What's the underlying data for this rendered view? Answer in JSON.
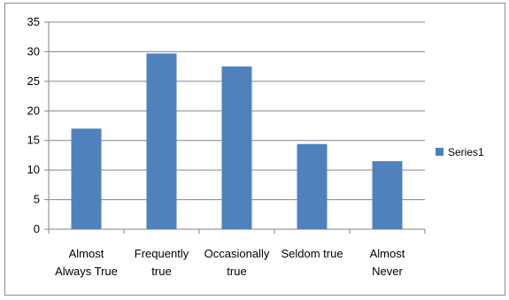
{
  "chart_data": {
    "type": "bar",
    "categories": [
      [
        "Almost",
        "Always True"
      ],
      [
        "Frequently",
        "true"
      ],
      [
        "Occasionally",
        "true"
      ],
      [
        "Seldom true"
      ],
      [
        "Almost",
        "Never"
      ]
    ],
    "series": [
      {
        "name": "Series1",
        "values": [
          17,
          29.7,
          27.5,
          14.4,
          11.5
        ],
        "color": "#4f81bd"
      }
    ],
    "ylim": [
      0,
      35
    ],
    "yticks": [
      0,
      5,
      10,
      15,
      20,
      25,
      30,
      35
    ],
    "grid": true,
    "legend": "right"
  }
}
